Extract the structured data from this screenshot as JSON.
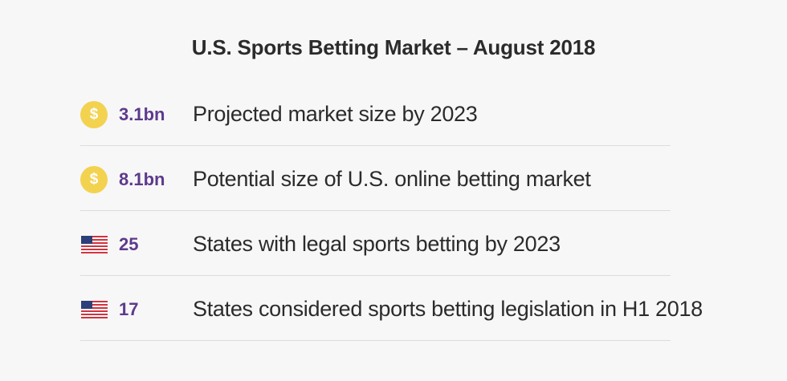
{
  "title": "U.S. Sports Betting Market – August 2018",
  "colors": {
    "accent": "#5d3a8c",
    "coin": "#f3d24f",
    "text": "#2b2b2b",
    "divider": "#dcdcdf",
    "background": "#f7f7f8"
  },
  "rows": [
    {
      "icon": "dollar-coin-icon",
      "icon_glyph": "$",
      "value": "3.1bn",
      "description": "Projected market size by 2023"
    },
    {
      "icon": "dollar-coin-icon",
      "icon_glyph": "$",
      "value": "8.1bn",
      "description": "Potential size of U.S. online betting market"
    },
    {
      "icon": "us-flag-icon",
      "value": "25",
      "description": "States with legal sports betting by 2023"
    },
    {
      "icon": "us-flag-icon",
      "value": "17",
      "description": "States considered sports betting legislation in H1 2018"
    }
  ]
}
